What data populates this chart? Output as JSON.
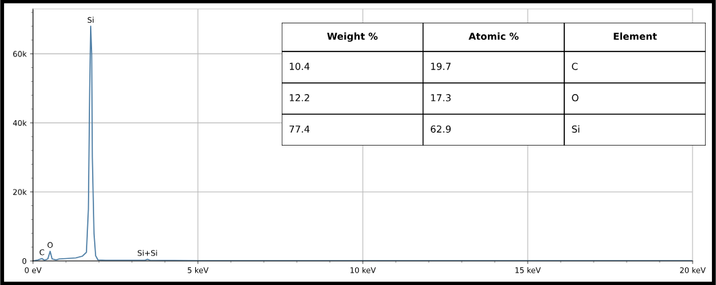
{
  "chart_data": [
    {
      "type": "line",
      "color": "#4f7fa6",
      "x": [
        0,
        0.15,
        0.27,
        0.35,
        0.45,
        0.52,
        0.58,
        0.7,
        0.8,
        1.0,
        1.3,
        1.5,
        1.62,
        1.68,
        1.72,
        1.75,
        1.78,
        1.8,
        1.85,
        1.9,
        1.97,
        2.2,
        3.0,
        3.4,
        3.47,
        3.55,
        5,
        10,
        15,
        20
      ],
      "values": [
        0,
        300,
        700,
        200,
        600,
        2800,
        600,
        300,
        600,
        700,
        900,
        1400,
        2500,
        15000,
        50000,
        68000,
        60000,
        30000,
        8000,
        1500,
        300,
        200,
        200,
        200,
        500,
        200,
        100,
        100,
        100,
        100
      ],
      "xlim": [
        0,
        20
      ],
      "ylim": [
        0,
        73000
      ],
      "xticks": [
        {
          "value": 0,
          "label": "0 eV"
        },
        {
          "value": 5,
          "label": "5 keV"
        },
        {
          "value": 10,
          "label": "10 keV"
        },
        {
          "value": 15,
          "label": "15 keV"
        },
        {
          "value": 20,
          "label": "20 keV"
        }
      ],
      "yticks": [
        0,
        {
          "value": 20000,
          "label": "20k"
        },
        {
          "value": 40000,
          "label": "40k"
        },
        {
          "value": 60000,
          "label": "60k"
        }
      ],
      "grid": true,
      "marker": "none",
      "line_style": "solid",
      "annotations": [
        {
          "text": "Si",
          "x": 1.75,
          "y": 68000
        },
        {
          "text": "C",
          "x": 0.27,
          "y": 700
        },
        {
          "text": "O",
          "x": 0.52,
          "y": 2800
        },
        {
          "text": "Si+Si",
          "x": 3.47,
          "y": 500
        }
      ]
    },
    {
      "type": "other",
      "annotations": [
        "Weight %",
        "Atomic %",
        "Element",
        "10.4",
        "19.7",
        "C",
        "12.2",
        "17.3",
        "O",
        "77.4",
        "62.9",
        "Si"
      ]
    }
  ]
}
